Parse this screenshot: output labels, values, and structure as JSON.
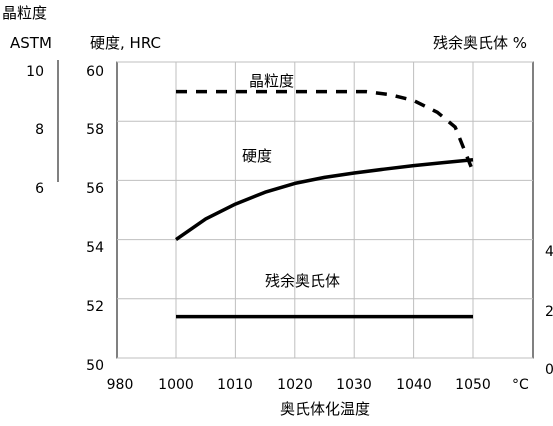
{
  "chart_data": {
    "type": "line",
    "xlabel": "奥氏体化温度",
    "x_unit": "°C",
    "xlim": [
      980,
      1050
    ],
    "x_ticks": [
      "980",
      "1000",
      "1010",
      "1020",
      "1030",
      "1040",
      "1050"
    ],
    "axes": {
      "grain_axis": {
        "title_line1": "晶粒度",
        "title_line2": "ASTM",
        "ticks": [
          "10",
          "8",
          "6"
        ]
      },
      "hardness_axis": {
        "title": "硬度, HRC",
        "ticks": [
          "60",
          "58",
          "56",
          "54",
          "52",
          "50"
        ],
        "ylim": [
          50,
          60
        ]
      },
      "retained_axis": {
        "title": "残余奥氏体 %",
        "ticks": [
          "4",
          "2",
          "0"
        ]
      }
    },
    "grid": true,
    "series": [
      {
        "name": "晶粒度",
        "style": "dashed",
        "axis": "hardness_axis_scale",
        "x": [
          1000,
          1004,
          1008,
          1012,
          1016,
          1020,
          1024,
          1028,
          1032,
          1036,
          1040,
          1044,
          1047,
          1050
        ],
        "y": [
          59.0,
          59.0,
          59.0,
          59.0,
          59.0,
          59.0,
          59.0,
          59.0,
          59.0,
          58.9,
          58.7,
          58.3,
          57.8,
          56.3
        ]
      },
      {
        "name": "硬度",
        "style": "solid",
        "axis": "hardness_axis",
        "x": [
          1000,
          1005,
          1010,
          1015,
          1020,
          1025,
          1030,
          1035,
          1040,
          1045,
          1050
        ],
        "y": [
          54.0,
          54.7,
          55.2,
          55.6,
          55.9,
          56.1,
          56.25,
          56.38,
          56.5,
          56.6,
          56.7
        ]
      },
      {
        "name": "残余奥氏体",
        "style": "solid",
        "axis": "hardness_axis_scale",
        "x": [
          1000,
          1050
        ],
        "y": [
          51.4,
          51.4
        ]
      }
    ],
    "line_color": "#000000"
  }
}
